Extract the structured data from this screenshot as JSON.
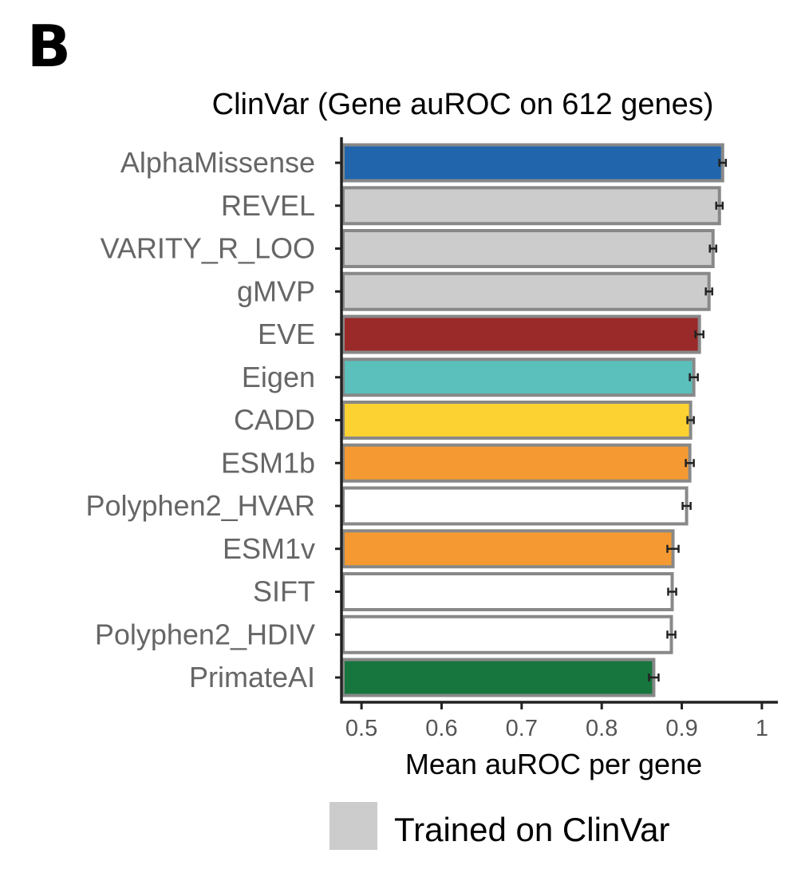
{
  "panel_label": "B",
  "chart_data": {
    "type": "bar",
    "orientation": "horizontal",
    "title": "ClinVar (Gene auROC on 612 genes)",
    "xlabel": "Mean auROC per gene",
    "ylabel": "",
    "xlim": [
      0.475,
      1.02
    ],
    "xticks": [
      0.5,
      0.6,
      0.7,
      0.8,
      0.9,
      1
    ],
    "xtick_labels": [
      "0.5",
      "0.6",
      "0.7",
      "0.8",
      "0.9",
      "1"
    ],
    "grid": false,
    "categories": [
      "AlphaMissense",
      "REVEL",
      "VARITY_R_LOO",
      "gMVP",
      "EVE",
      "Eigen",
      "CADD",
      "ESM1b",
      "Polyphen2_HVAR",
      "ESM1v",
      "SIFT",
      "Polyphen2_HDIV",
      "PrimateAI"
    ],
    "values": [
      0.951,
      0.947,
      0.939,
      0.934,
      0.922,
      0.915,
      0.911,
      0.91,
      0.906,
      0.889,
      0.888,
      0.887,
      0.865
    ],
    "errors": [
      0.004,
      0.004,
      0.004,
      0.004,
      0.005,
      0.005,
      0.004,
      0.005,
      0.005,
      0.007,
      0.005,
      0.005,
      0.006
    ],
    "colors": [
      "#2166ac",
      "#cccccc",
      "#cccccc",
      "#cccccc",
      "#9a2a2a",
      "#5bbfbb",
      "#fcd232",
      "#f59a32",
      "#ffffff",
      "#f59a32",
      "#ffffff",
      "#ffffff",
      "#17763e"
    ],
    "bar_edge_color": "#888888",
    "legend": {
      "position": "bottom",
      "entries": [
        {
          "label": "Trained on ClinVar",
          "color": "#cccccc"
        }
      ]
    }
  }
}
